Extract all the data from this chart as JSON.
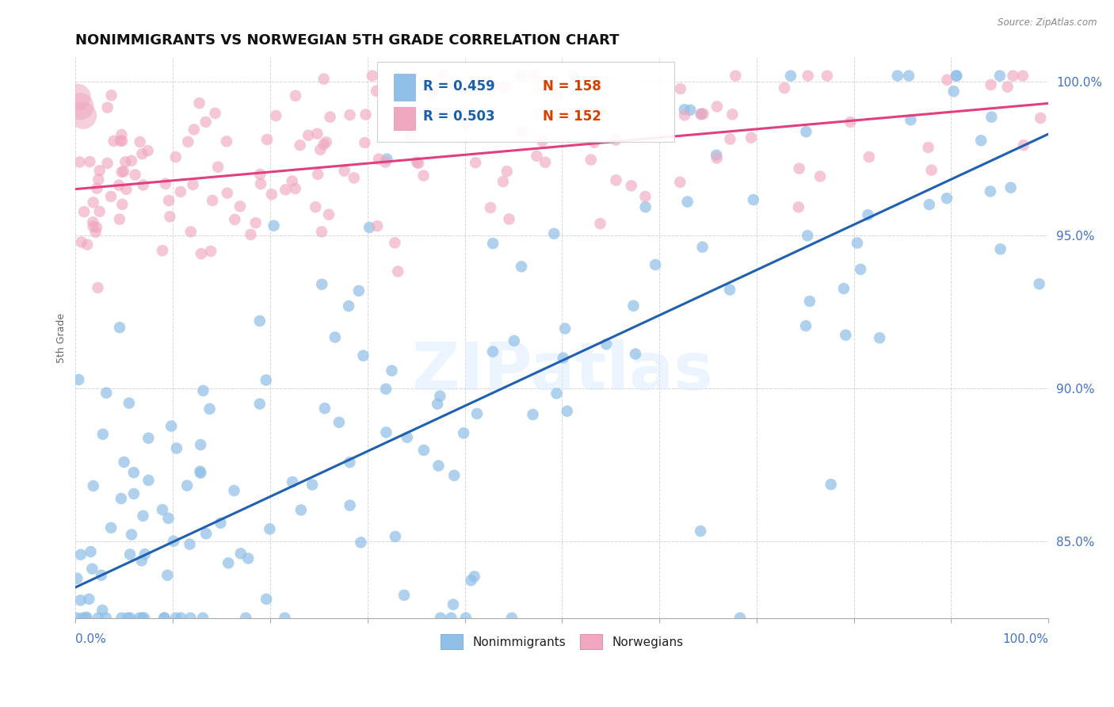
{
  "title": "NONIMMIGRANTS VS NORWEGIAN 5TH GRADE CORRELATION CHART",
  "source": "Source: ZipAtlas.com",
  "ylabel": "5th Grade",
  "ytick_labels": [
    "85.0%",
    "90.0%",
    "95.0%",
    "100.0%"
  ],
  "ytick_values": [
    0.85,
    0.9,
    0.95,
    1.0
  ],
  "legend_r1": "R = 0.459",
  "legend_n1": "N = 158",
  "legend_r2": "R = 0.503",
  "legend_n2": "N = 152",
  "watermark": "ZIPatlas",
  "blue_color": "#90c0e8",
  "blue_line_color": "#2060b0",
  "pink_color": "#f0a8c0",
  "pink_line_color": "#e04080",
  "background_color": "#ffffff",
  "ylim_low": 0.825,
  "ylim_high": 1.008,
  "blue_scatter_seed": 42,
  "pink_scatter_seed": 77
}
